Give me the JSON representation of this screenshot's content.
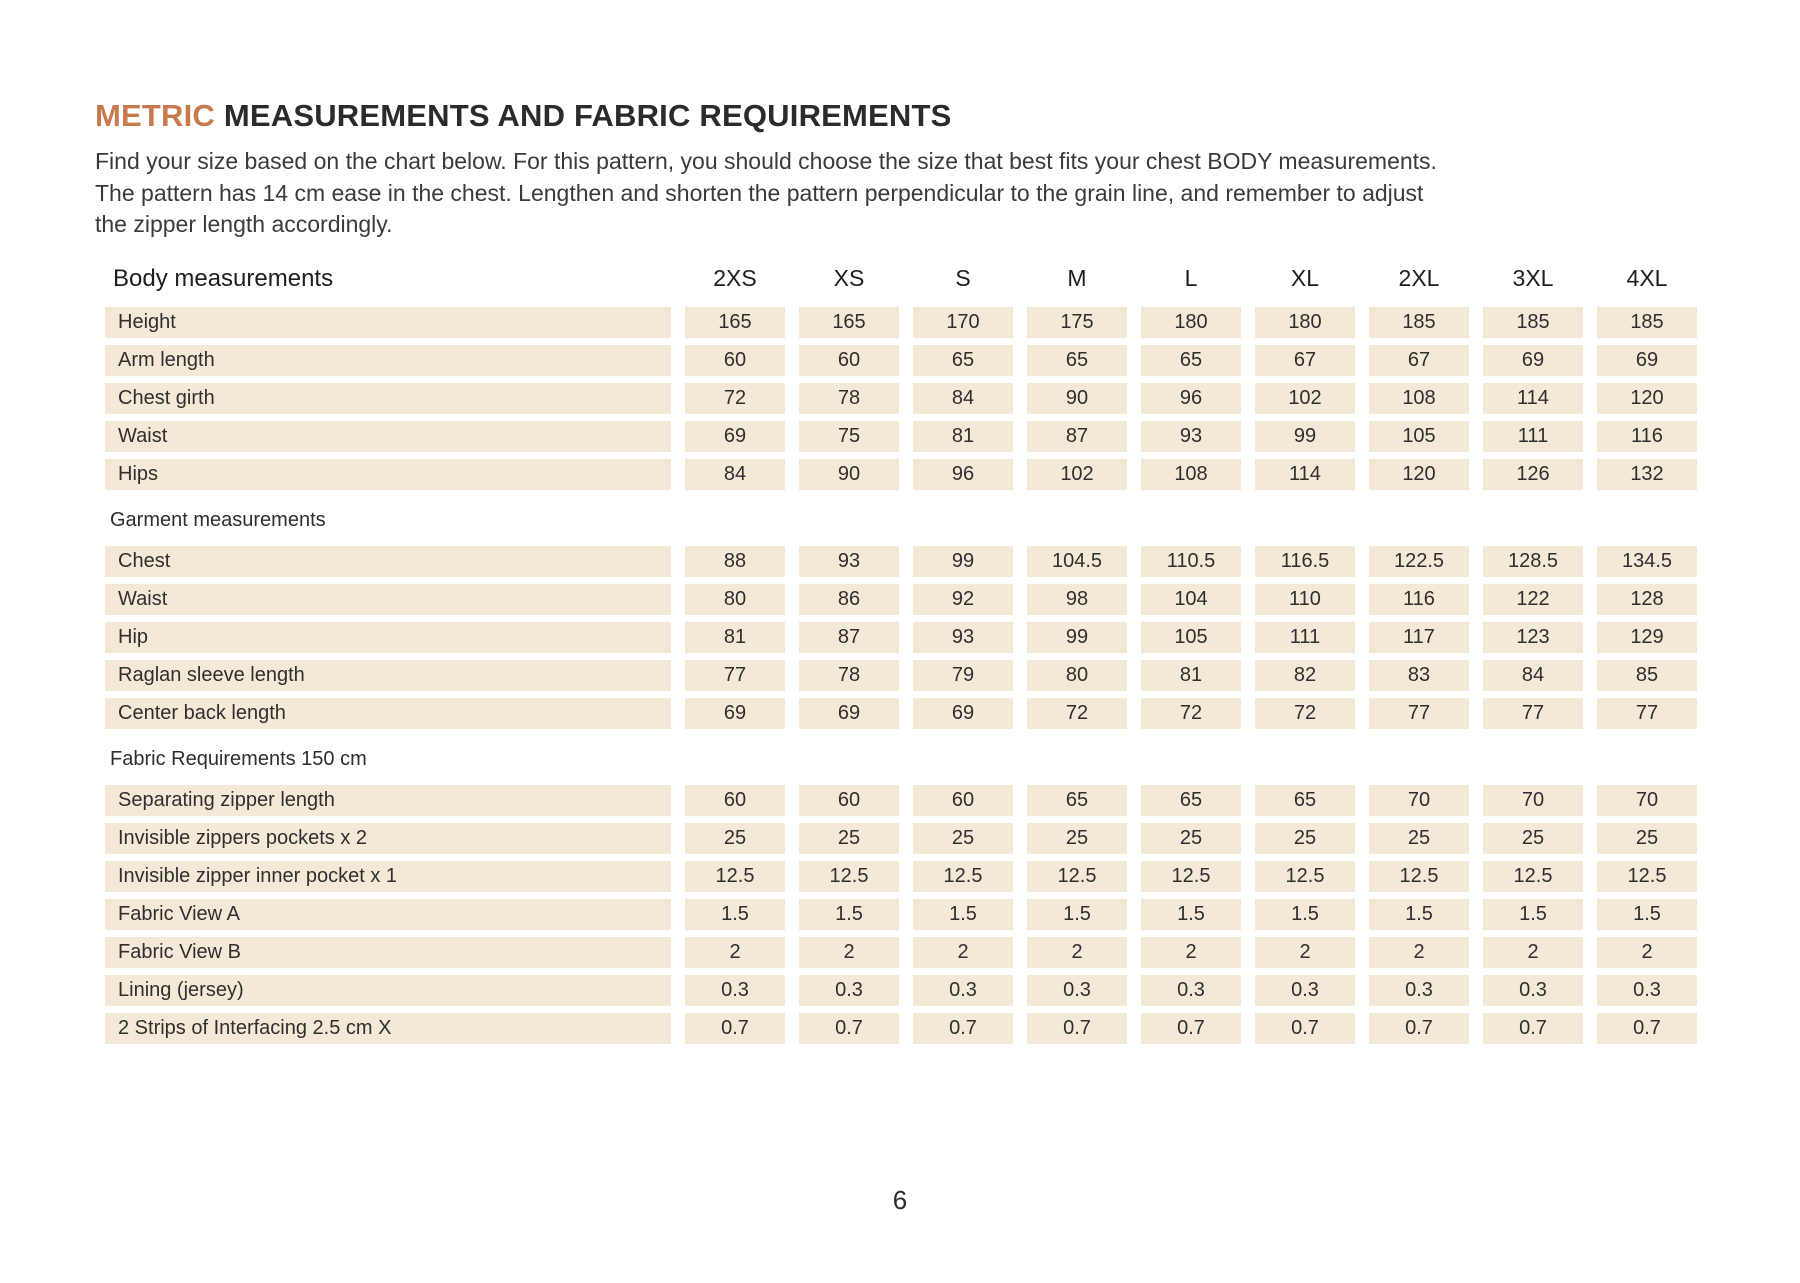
{
  "page": {
    "title_accent": "METRIC",
    "title_rest": " MEASUREMENTS AND FABRIC REQUIREMENTS",
    "intro": "Find your size based on the chart below. For this pattern, you should choose the size that best fits your chest BODY measurements. The pattern has 14 cm ease in the chest. Lengthen and shorten the pattern perpendicular to the grain line, and remember to adjust the zipper length accordingly.",
    "page_number": "6"
  },
  "colors": {
    "accent": "#c87a4f",
    "cell_background": "#f3e9d6",
    "text": "#2f2f2f"
  },
  "table": {
    "header": {
      "label": "Body measurements",
      "sizes": [
        "2XS",
        "XS",
        "S",
        "M",
        "L",
        "XL",
        "2XL",
        "3XL",
        "4XL"
      ]
    },
    "sections": [
      {
        "heading": "",
        "rows": [
          {
            "label": "Height",
            "values": [
              "165",
              "165",
              "170",
              "175",
              "180",
              "180",
              "185",
              "185",
              "185"
            ]
          },
          {
            "label": "Arm length",
            "values": [
              "60",
              "60",
              "65",
              "65",
              "65",
              "67",
              "67",
              "69",
              "69"
            ]
          },
          {
            "label": "Chest girth",
            "values": [
              "72",
              "78",
              "84",
              "90",
              "96",
              "102",
              "108",
              "114",
              "120"
            ]
          },
          {
            "label": "Waist",
            "values": [
              "69",
              "75",
              "81",
              "87",
              "93",
              "99",
              "105",
              "111",
              "116"
            ]
          },
          {
            "label": "Hips",
            "values": [
              "84",
              "90",
              "96",
              "102",
              "108",
              "114",
              "120",
              "126",
              "132"
            ]
          }
        ]
      },
      {
        "heading": "Garment measurements",
        "rows": [
          {
            "label": "Chest",
            "values": [
              "88",
              "93",
              "99",
              "104.5",
              "110.5",
              "116.5",
              "122.5",
              "128.5",
              "134.5"
            ]
          },
          {
            "label": "Waist",
            "values": [
              "80",
              "86",
              "92",
              "98",
              "104",
              "110",
              "116",
              "122",
              "128"
            ]
          },
          {
            "label": "Hip",
            "values": [
              "81",
              "87",
              "93",
              "99",
              "105",
              "111",
              "117",
              "123",
              "129"
            ]
          },
          {
            "label": "Raglan sleeve length",
            "values": [
              "77",
              "78",
              "79",
              "80",
              "81",
              "82",
              "83",
              "84",
              "85"
            ]
          },
          {
            "label": "Center back length",
            "values": [
              "69",
              "69",
              "69",
              "72",
              "72",
              "72",
              "77",
              "77",
              "77"
            ]
          }
        ]
      },
      {
        "heading": "Fabric Requirements 150 cm",
        "rows": [
          {
            "label": "Separating zipper length",
            "values": [
              "60",
              "60",
              "60",
              "65",
              "65",
              "65",
              "70",
              "70",
              "70"
            ]
          },
          {
            "label": "Invisible zippers pockets x 2",
            "values": [
              "25",
              "25",
              "25",
              "25",
              "25",
              "25",
              "25",
              "25",
              "25"
            ]
          },
          {
            "label": "Invisible zipper inner pocket x 1",
            "values": [
              "12.5",
              "12.5",
              "12.5",
              "12.5",
              "12.5",
              "12.5",
              "12.5",
              "12.5",
              "12.5"
            ]
          },
          {
            "label": "Fabric View A",
            "values": [
              "1.5",
              "1.5",
              "1.5",
              "1.5",
              "1.5",
              "1.5",
              "1.5",
              "1.5",
              "1.5"
            ]
          },
          {
            "label": "Fabric View B",
            "values": [
              "2",
              "2",
              "2",
              "2",
              "2",
              "2",
              "2",
              "2",
              "2"
            ]
          },
          {
            "label": "Lining (jersey)",
            "values": [
              "0.3",
              "0.3",
              "0.3",
              "0.3",
              "0.3",
              "0.3",
              "0.3",
              "0.3",
              "0.3"
            ]
          },
          {
            "label": "2 Strips of Interfacing  2.5 cm X",
            "values": [
              "0.7",
              "0.7",
              "0.7",
              "0.7",
              "0.7",
              "0.7",
              "0.7",
              "0.7",
              "0.7"
            ]
          }
        ]
      }
    ]
  }
}
